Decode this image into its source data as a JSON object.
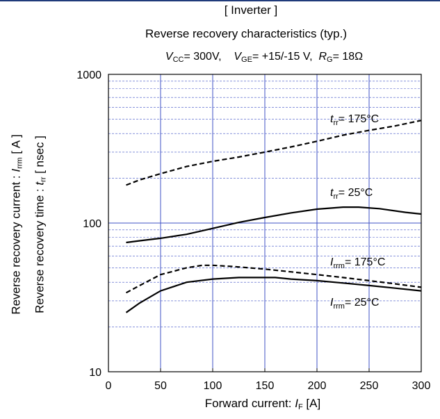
{
  "title": "[ Inverter ]",
  "subtitle": "Reverse recovery characteristics  (typ.)",
  "conditions": {
    "vcc_sym": "V",
    "vcc_sub": "CC",
    "vcc_val": "= 300V,",
    "vge_sym": "V",
    "vge_sub": "GE",
    "vge_val": "= +15/-15 V,",
    "rg_sym": "R",
    "rg_sub": "G",
    "rg_val": "= 18Ω"
  },
  "x_axis": {
    "label_text": "Forward current: ",
    "label_sym": "I",
    "label_sub": "F",
    "label_unit": " [A]"
  },
  "y_axis": {
    "label1_text": "Reverse recovery current  :  ",
    "label1_sym": "I",
    "label1_sub": "rrm",
    "label1_unit": "  [ A ]",
    "label2_text": "Reverse recovery time  :  ",
    "label2_sym": "t",
    "label2_sub": "rr",
    "label2_unit": "  [ nsec ]"
  },
  "colors": {
    "grid": "#3f51c6",
    "curve": "#000000",
    "frame_accent": "#1f3a7a"
  },
  "chart_data": {
    "type": "line",
    "scale_y": "log",
    "xlim": [
      0,
      300
    ],
    "ylim": [
      10,
      1000
    ],
    "x_ticks": [
      0,
      50,
      100,
      150,
      200,
      250,
      300
    ],
    "y_ticks": [
      10,
      100,
      1000
    ],
    "grid": true,
    "series": [
      {
        "sym": "t",
        "sub": "rr",
        "suffix": "= 175°C",
        "dash": true,
        "x": [
          17,
          30,
          50,
          75,
          100,
          125,
          150,
          175,
          200,
          225,
          250,
          275,
          300
        ],
        "y": [
          180,
          195,
          215,
          240,
          260,
          278,
          300,
          325,
          355,
          390,
          420,
          450,
          490
        ]
      },
      {
        "sym": "t",
        "sub": "rr",
        "suffix": "= 25°C",
        "dash": false,
        "x": [
          17,
          30,
          50,
          75,
          100,
          125,
          150,
          175,
          200,
          225,
          240,
          260,
          285,
          300
        ],
        "y": [
          74,
          76,
          79,
          84,
          92,
          101,
          109,
          117,
          124,
          128,
          128,
          125,
          118,
          115
        ]
      },
      {
        "sym": "I",
        "sub": "rrm",
        "suffix": "= 175°C",
        "dash": true,
        "x": [
          17,
          30,
          50,
          75,
          90,
          100,
          120,
          150,
          175,
          200,
          225,
          250,
          275,
          300
        ],
        "y": [
          34,
          38,
          45,
          50,
          52,
          52,
          51,
          49,
          47,
          45,
          43,
          41,
          39,
          37
        ]
      },
      {
        "sym": "I",
        "sub": "rrm",
        "suffix": "= 25°C",
        "dash": false,
        "x": [
          17,
          30,
          50,
          75,
          100,
          125,
          150,
          160,
          175,
          200,
          225,
          250,
          275,
          300
        ],
        "y": [
          25,
          29,
          35,
          40,
          42,
          43,
          43,
          43,
          42,
          41,
          39.5,
          38,
          36.5,
          35
        ]
      }
    ]
  }
}
